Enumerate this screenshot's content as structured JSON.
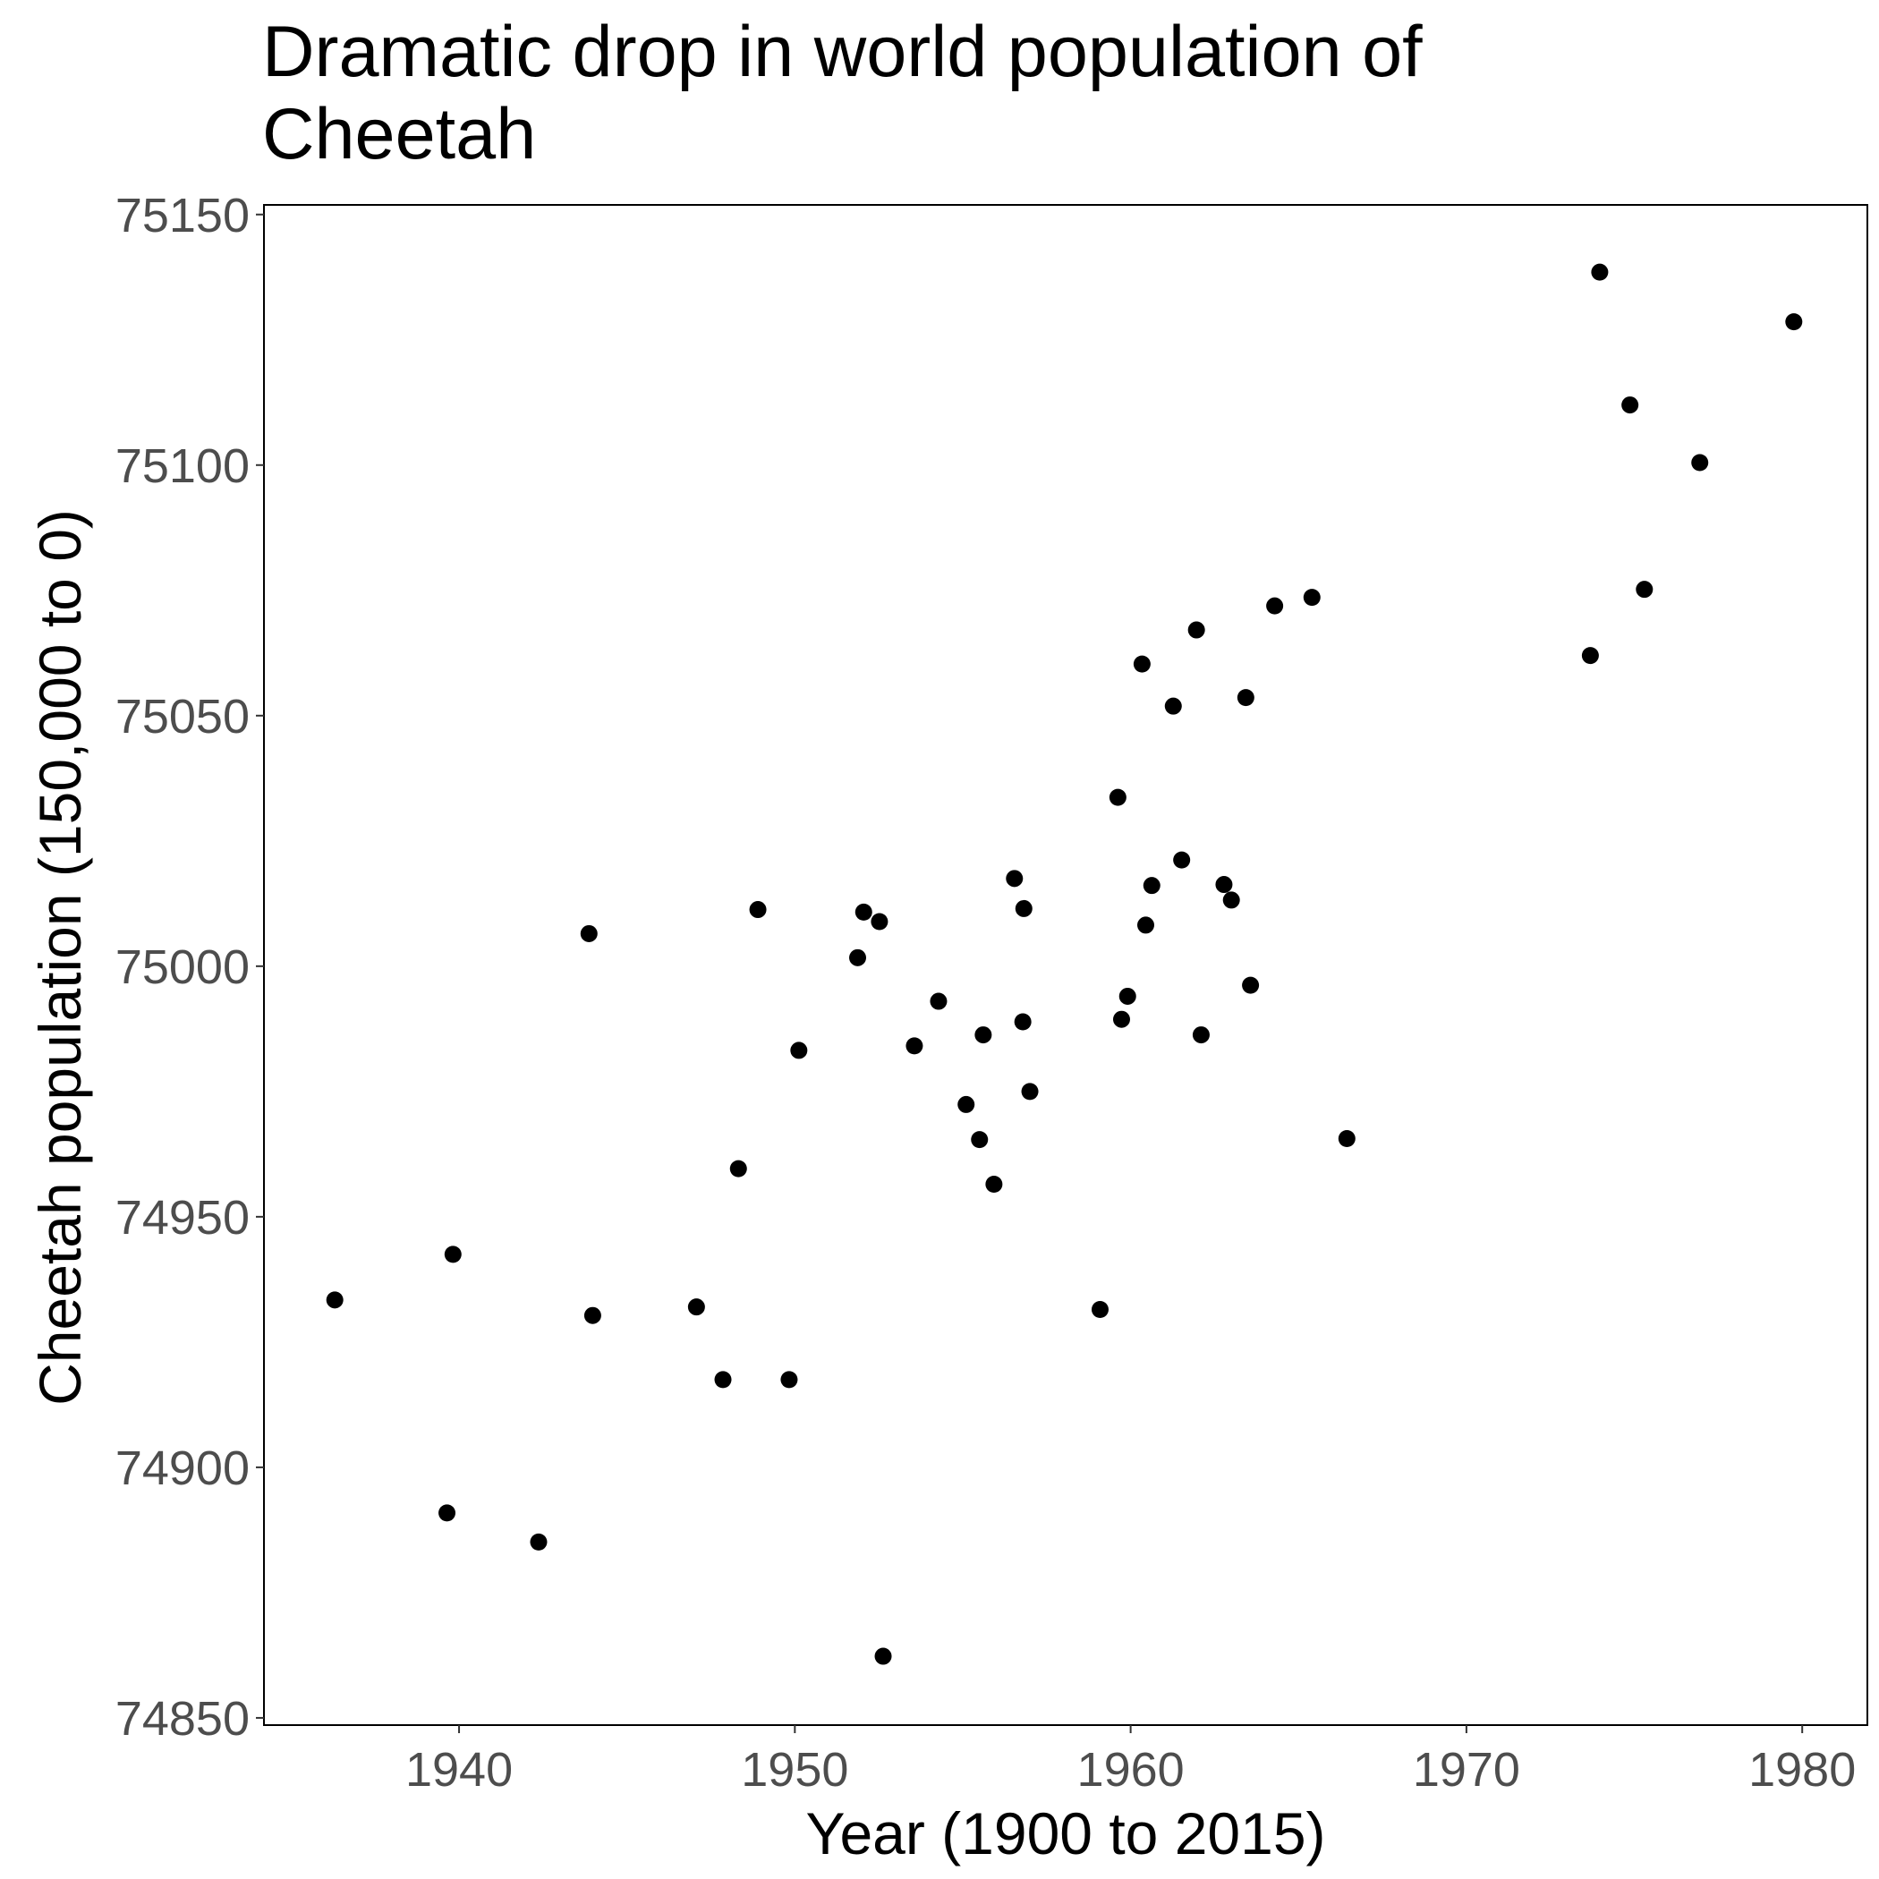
{
  "chart_data": {
    "type": "scatter",
    "title": "Dramatic drop in world population of Cheetah",
    "x_label": "Year (1900 to 2015)",
    "y_label": "Cheetah population (150,000 to 0)",
    "color": "#000000",
    "xlim": [
      1934.19,
      1981.94
    ],
    "ylim": [
      74848.56,
      75151.92
    ],
    "xticks": [
      1940,
      1950,
      1960,
      1970,
      1980
    ],
    "yticks": [
      74850,
      74900,
      74950,
      75000,
      75050,
      75100,
      75150
    ],
    "x": [
      1936.3,
      1939.64,
      1939.82,
      1942.37,
      1943.87,
      1943.98,
      1947.07,
      1947.86,
      1948.32,
      1948.9,
      1949.83,
      1950.12,
      1951.87,
      1952.05,
      1952.52,
      1952.63,
      1953.56,
      1954.28,
      1955.1,
      1955.5,
      1955.61,
      1955.93,
      1956.54,
      1956.79,
      1956.82,
      1957.0,
      1959.09,
      1959.62,
      1959.73,
      1959.91,
      1960.34,
      1960.45,
      1960.63,
      1961.27,
      1961.52,
      1961.96,
      1962.1,
      1962.78,
      1963.0,
      1963.43,
      1963.57,
      1964.29,
      1965.4,
      1966.44,
      1973.69,
      1973.97,
      1974.87,
      1975.3,
      1976.95,
      1979.75
    ],
    "values": [
      74933.4,
      74890.9,
      74942.5,
      74885.1,
      75006.5,
      74930.3,
      74932.0,
      74917.5,
      74959.6,
      75011.3,
      74917.5,
      74983.2,
      75001.7,
      75010.8,
      75008.9,
      74862.3,
      74984.1,
      74993.0,
      74972.4,
      74965.4,
      74986.3,
      74956.5,
      75017.5,
      74988.9,
      75011.5,
      74975.0,
      74931.5,
      75033.7,
      74989.4,
      74994.0,
      75060.3,
      75008.2,
      75016.1,
      75051.9,
      75021.2,
      75067.1,
      74986.3,
      75016.3,
      75013.2,
      75053.6,
      74996.2,
      75071.9,
      75073.6,
      74965.6,
      75062.0,
      75138.5,
      75112.0,
      75075.2,
      75100.5,
      75128.6
    ]
  }
}
